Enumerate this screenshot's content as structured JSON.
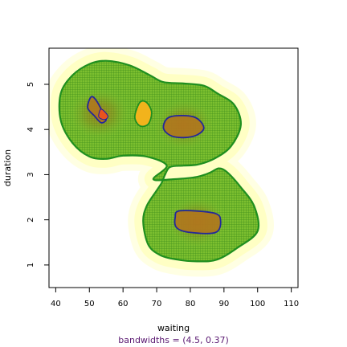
{
  "chart_data": {
    "type": "heatmap",
    "title": "",
    "xlabel": "waiting",
    "ylabel": "duration",
    "sub": "bandwidths = (4.5, 0.37)",
    "xlim": [
      38,
      112
    ],
    "ylim": [
      0.5,
      5.8
    ],
    "x_ticks": [
      "40",
      "50",
      "60",
      "70",
      "80",
      "90",
      "100",
      "110"
    ],
    "y_ticks": [
      "1",
      "2",
      "3",
      "4",
      "5"
    ],
    "grid": false,
    "colors": {
      "outer": "#fffff0",
      "mid": "#ffff80",
      "fill_low": "#8fc93a",
      "fill_high": "#c96a1a",
      "contour_1": "#1f8f1f",
      "contour_2": "#1a1aa8",
      "contour_3": "#f2b31c",
      "peak": "#e8531e"
    },
    "density_modes": [
      {
        "waiting": 53,
        "duration": 4.35,
        "level": "peak"
      },
      {
        "waiting": 66,
        "duration": 4.3,
        "level": "local"
      },
      {
        "waiting": 78,
        "duration": 4.1,
        "level": "high"
      },
      {
        "waiting": 82,
        "duration": 1.95,
        "level": "high"
      }
    ],
    "contours": [
      {
        "level": "low",
        "color": "green",
        "points": [
          [
            55,
            5.52
          ],
          [
            62,
            5.42
          ],
          [
            68,
            5.2
          ],
          [
            72,
            5.05
          ],
          [
            78,
            5.02
          ],
          [
            84,
            4.97
          ],
          [
            88,
            4.8
          ],
          [
            93,
            4.55
          ],
          [
            95,
            4.1
          ],
          [
            92,
            3.62
          ],
          [
            87,
            3.35
          ],
          [
            82,
            3.22
          ],
          [
            78,
            3.2
          ],
          [
            74,
            3.17
          ],
          [
            72.5,
            3.0
          ],
          [
            71.5,
            2.82
          ],
          [
            70,
            2.65
          ],
          [
            67,
            2.3
          ],
          [
            66,
            1.95
          ],
          [
            67.5,
            1.45
          ],
          [
            71,
            1.22
          ],
          [
            76,
            1.12
          ],
          [
            82,
            1.08
          ],
          [
            88,
            1.12
          ],
          [
            94,
            1.38
          ],
          [
            100,
            1.75
          ],
          [
            99,
            2.3
          ],
          [
            95,
            2.72
          ],
          [
            91,
            3.05
          ],
          [
            88.5,
            3.14
          ],
          [
            86,
            3.05
          ],
          [
            82,
            2.95
          ],
          [
            75,
            2.9
          ],
          [
            69,
            2.9
          ],
          [
            73,
            3.2
          ],
          [
            67,
            3.4
          ],
          [
            60,
            3.42
          ],
          [
            55,
            3.35
          ],
          [
            50,
            3.4
          ],
          [
            45,
            3.7
          ],
          [
            41.5,
            4.2
          ],
          [
            41.5,
            4.8
          ],
          [
            45,
            5.2
          ],
          [
            50,
            5.45
          ]
        ]
      },
      {
        "level": "mid",
        "color": "blue",
        "points": [
          [
            50.5,
            4.72
          ],
          [
            52,
            4.65
          ],
          [
            54,
            4.38
          ],
          [
            55,
            4.22
          ],
          [
            53.5,
            4.15
          ],
          [
            51.5,
            4.3
          ],
          [
            49.5,
            4.48
          ]
        ]
      },
      {
        "level": "mid",
        "color": "blue",
        "points": [
          [
            74,
            4.28
          ],
          [
            81,
            4.28
          ],
          [
            84,
            4.05
          ],
          [
            82,
            3.88
          ],
          [
            78,
            3.82
          ],
          [
            74,
            3.87
          ],
          [
            72,
            4.05
          ]
        ]
      },
      {
        "level": "mid",
        "color": "blue",
        "points": [
          [
            77,
            2.2
          ],
          [
            87,
            2.15
          ],
          [
            89,
            1.98
          ],
          [
            87.5,
            1.72
          ],
          [
            80,
            1.72
          ],
          [
            76,
            1.82
          ],
          [
            75.5,
            2.05
          ]
        ]
      },
      {
        "level": "mid",
        "color": "orange",
        "points": [
          [
            65,
            4.6
          ],
          [
            67,
            4.6
          ],
          [
            68.5,
            4.38
          ],
          [
            67.5,
            4.12
          ],
          [
            65,
            4.08
          ],
          [
            63.5,
            4.28
          ]
        ]
      },
      {
        "level": "peak",
        "color": "red",
        "points": [
          [
            53.5,
            4.45
          ],
          [
            55.5,
            4.3
          ],
          [
            54.5,
            4.22
          ],
          [
            52.8,
            4.28
          ]
        ]
      }
    ]
  }
}
